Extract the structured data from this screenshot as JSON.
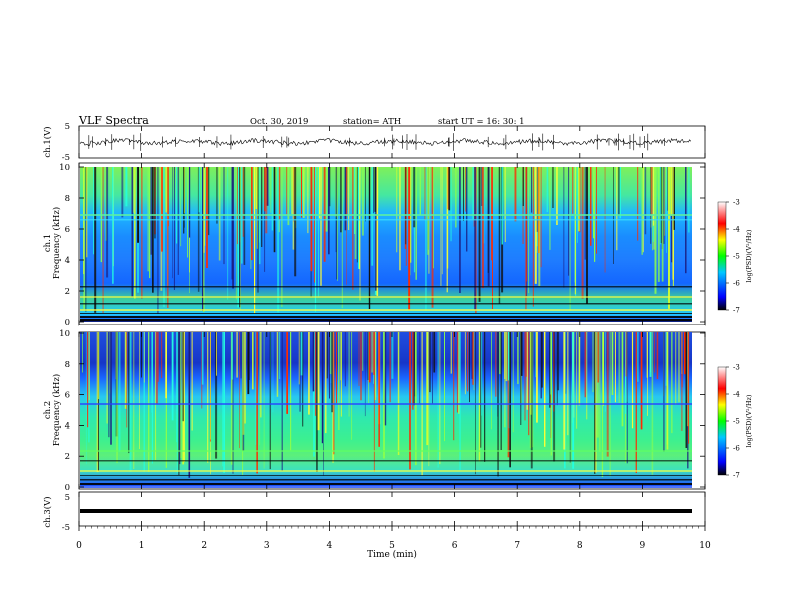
{
  "header": {
    "title": "VLF  Spectra",
    "date": "Oct. 30, 2019",
    "station": "station= ATH",
    "start": "start  UT  =    16: 30: 1"
  },
  "chart_data": [
    {
      "type": "line",
      "name": "ch1-waveform",
      "ylabel": "ch.1(V)",
      "ylim": [
        -5,
        5
      ],
      "yticks": [
        "5",
        "-5"
      ],
      "xlim": [
        0,
        10
      ]
    },
    {
      "type": "heatmap",
      "name": "ch1-spectrogram",
      "ylabel_line1": "ch.1",
      "ylabel_line2": "Frequency  (kHz)",
      "ylim": [
        0,
        10
      ],
      "yticks": [
        "0",
        "2",
        "4",
        "6",
        "8",
        "10"
      ],
      "xlim": [
        0,
        10
      ]
    },
    {
      "type": "heatmap",
      "name": "ch2-spectrogram",
      "ylabel_line1": "ch.2",
      "ylabel_line2": "Frequency  (kHz)",
      "ylim": [
        0,
        10
      ],
      "yticks": [
        "0",
        "2",
        "4",
        "6",
        "8",
        "10"
      ],
      "xlim": [
        0,
        10
      ]
    },
    {
      "type": "line",
      "name": "ch3-waveform",
      "ylabel": "ch.3(V)",
      "ylim": [
        -5,
        5
      ],
      "yticks": [
        "5",
        "-5"
      ],
      "xlim": [
        0,
        10
      ],
      "xticks": [
        "0",
        "1",
        "2",
        "3",
        "4",
        "5",
        "6",
        "7",
        "8",
        "9",
        "10"
      ],
      "xlabel": "Time  (min)"
    }
  ],
  "colorbar": {
    "label": "log(PSD)(V²/Hz)",
    "range": [
      -7,
      -3
    ],
    "ticks": [
      "-3",
      "-4",
      "-5",
      "-6",
      "-7"
    ],
    "colors": [
      "#000000",
      "#0000ff",
      "#00c8ff",
      "#00ff00",
      "#ffff00",
      "#ff0000",
      "#ffffff"
    ]
  }
}
